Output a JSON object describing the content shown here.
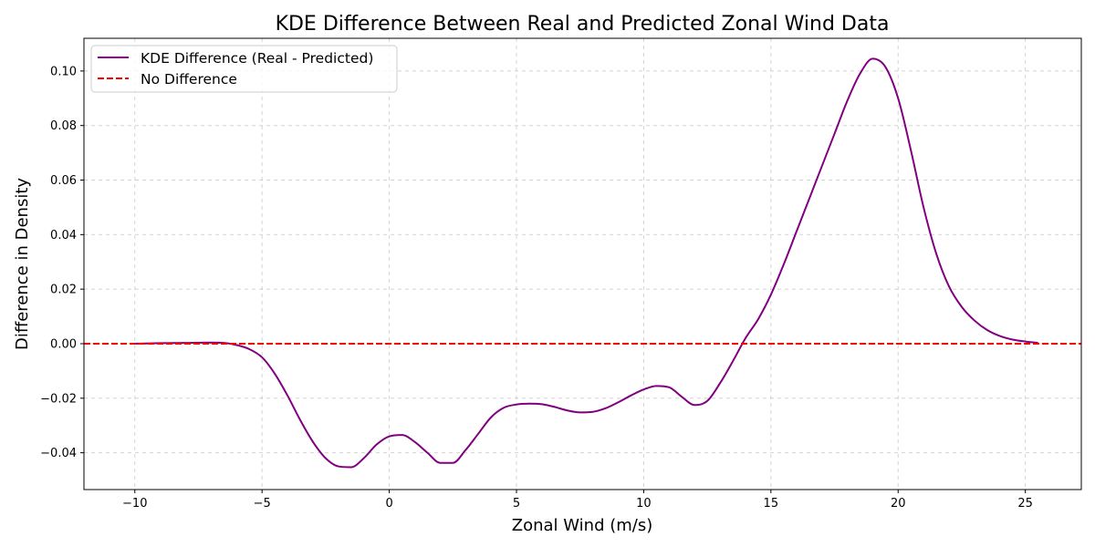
{
  "chart_data": {
    "type": "line",
    "title": "KDE Difference Between Real and Predicted Zonal Wind Data",
    "xlabel": "Zonal Wind (m/s)",
    "ylabel": "Difference in Density",
    "xlim": [
      -12,
      27.2
    ],
    "ylim": [
      -0.0535,
      0.112
    ],
    "x_ticks": [
      -10,
      -5,
      0,
      5,
      10,
      15,
      20,
      25
    ],
    "x_tick_labels": [
      "−10",
      "−5",
      "0",
      "5",
      "10",
      "15",
      "20",
      "25"
    ],
    "y_ticks": [
      -0.04,
      -0.02,
      0.0,
      0.02,
      0.04,
      0.06,
      0.08,
      0.1
    ],
    "y_tick_labels": [
      "−0.04",
      "−0.02",
      "0.00",
      "0.02",
      "0.04",
      "0.06",
      "0.08",
      "0.10"
    ],
    "grid": true,
    "legend_position": "top-left",
    "series": [
      {
        "name": "KDE Difference (Real - Predicted)",
        "color": "#800080",
        "style": "solid",
        "x": [
          -10,
          -9,
          -8,
          -7,
          -6.5,
          -6,
          -5.5,
          -5,
          -4.5,
          -4,
          -3.5,
          -3,
          -2.5,
          -2,
          -1.5,
          -1,
          -0.5,
          0,
          0.5,
          1,
          1.5,
          2,
          2.5,
          3,
          3.5,
          4,
          4.5,
          5,
          5.5,
          6,
          6.5,
          7,
          7.5,
          8,
          8.5,
          9,
          9.5,
          10,
          10.5,
          11,
          11.5,
          12,
          12.5,
          13,
          13.5,
          14,
          14.5,
          15,
          15.5,
          16,
          16.5,
          17,
          17.5,
          18,
          18.5,
          19,
          19.5,
          20,
          20.5,
          21,
          21.5,
          22,
          22.5,
          23,
          23.5,
          24,
          24.5,
          25,
          25.5
        ],
        "y": [
          0.0,
          0.0002,
          0.0003,
          0.0004,
          0.0003,
          -0.0005,
          -0.002,
          -0.005,
          -0.011,
          -0.019,
          -0.028,
          -0.036,
          -0.042,
          -0.045,
          -0.0453,
          -0.042,
          -0.037,
          -0.034,
          -0.0335,
          -0.036,
          -0.04,
          -0.0437,
          -0.0437,
          -0.039,
          -0.033,
          -0.027,
          -0.0235,
          -0.0223,
          -0.022,
          -0.0222,
          -0.0232,
          -0.0245,
          -0.0252,
          -0.025,
          -0.0237,
          -0.0215,
          -0.019,
          -0.0168,
          -0.0155,
          -0.016,
          -0.0195,
          -0.0225,
          -0.021,
          -0.0145,
          -0.0065,
          0.002,
          0.009,
          0.018,
          0.029,
          0.041,
          0.053,
          0.065,
          0.077,
          0.089,
          0.099,
          0.1045,
          0.1015,
          0.09,
          0.071,
          0.05,
          0.033,
          0.021,
          0.0135,
          0.0085,
          0.005,
          0.0028,
          0.0015,
          0.0008,
          0.0003
        ]
      },
      {
        "name": "No Difference",
        "color": "#ff0000",
        "style": "dashed",
        "x": [
          -12,
          27.2
        ],
        "y": [
          0.0,
          0.0
        ]
      }
    ]
  }
}
